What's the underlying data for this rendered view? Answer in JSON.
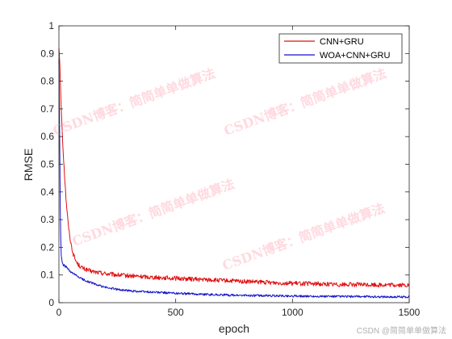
{
  "chart_data": {
    "type": "line",
    "xlabel": "epoch",
    "ylabel": "RMSE",
    "xlim": [
      0,
      1500
    ],
    "ylim": [
      0,
      1
    ],
    "xticks": [
      "0",
      "500",
      "1000",
      "1500"
    ],
    "yticks": [
      "0",
      "0.1",
      "0.2",
      "0.3",
      "0.4",
      "0.5",
      "0.6",
      "0.7",
      "0.8",
      "0.9",
      "1"
    ],
    "grid": false,
    "legend_position": "top-right",
    "series": [
      {
        "name": "CNN+GRU",
        "color": "#e01010",
        "x": [
          0,
          3,
          6,
          10,
          15,
          20,
          25,
          30,
          40,
          50,
          60,
          70,
          80,
          100,
          130,
          160,
          200,
          250,
          300,
          400,
          500,
          600,
          700,
          800,
          900,
          1000,
          1100,
          1200,
          1300,
          1400,
          1500
        ],
        "y": [
          0.92,
          0.88,
          0.8,
          0.7,
          0.6,
          0.52,
          0.45,
          0.38,
          0.28,
          0.22,
          0.18,
          0.155,
          0.14,
          0.125,
          0.115,
          0.11,
          0.105,
          0.1,
          0.097,
          0.092,
          0.088,
          0.084,
          0.08,
          0.076,
          0.073,
          0.07,
          0.068,
          0.066,
          0.065,
          0.064,
          0.063
        ]
      },
      {
        "name": "WOA+CNN+GRU",
        "color": "#1010cc",
        "x": [
          0,
          2,
          4,
          6,
          8,
          10,
          15,
          20,
          30,
          40,
          50,
          60,
          80,
          100,
          130,
          160,
          200,
          250,
          300,
          400,
          500,
          600,
          700,
          800,
          900,
          1000,
          1100,
          1200,
          1300,
          1400,
          1500
        ],
        "y": [
          0.88,
          0.7,
          0.5,
          0.33,
          0.23,
          0.17,
          0.14,
          0.135,
          0.13,
          0.12,
          0.11,
          0.105,
          0.095,
          0.085,
          0.075,
          0.065,
          0.055,
          0.048,
          0.043,
          0.038,
          0.034,
          0.031,
          0.028,
          0.026,
          0.025,
          0.024,
          0.023,
          0.022,
          0.022,
          0.021,
          0.021
        ]
      }
    ]
  },
  "watermarks": {
    "diagonal_text": "CSDN博客：简简单单做算法",
    "corner_text": "CSDN @简简单单做算法"
  }
}
